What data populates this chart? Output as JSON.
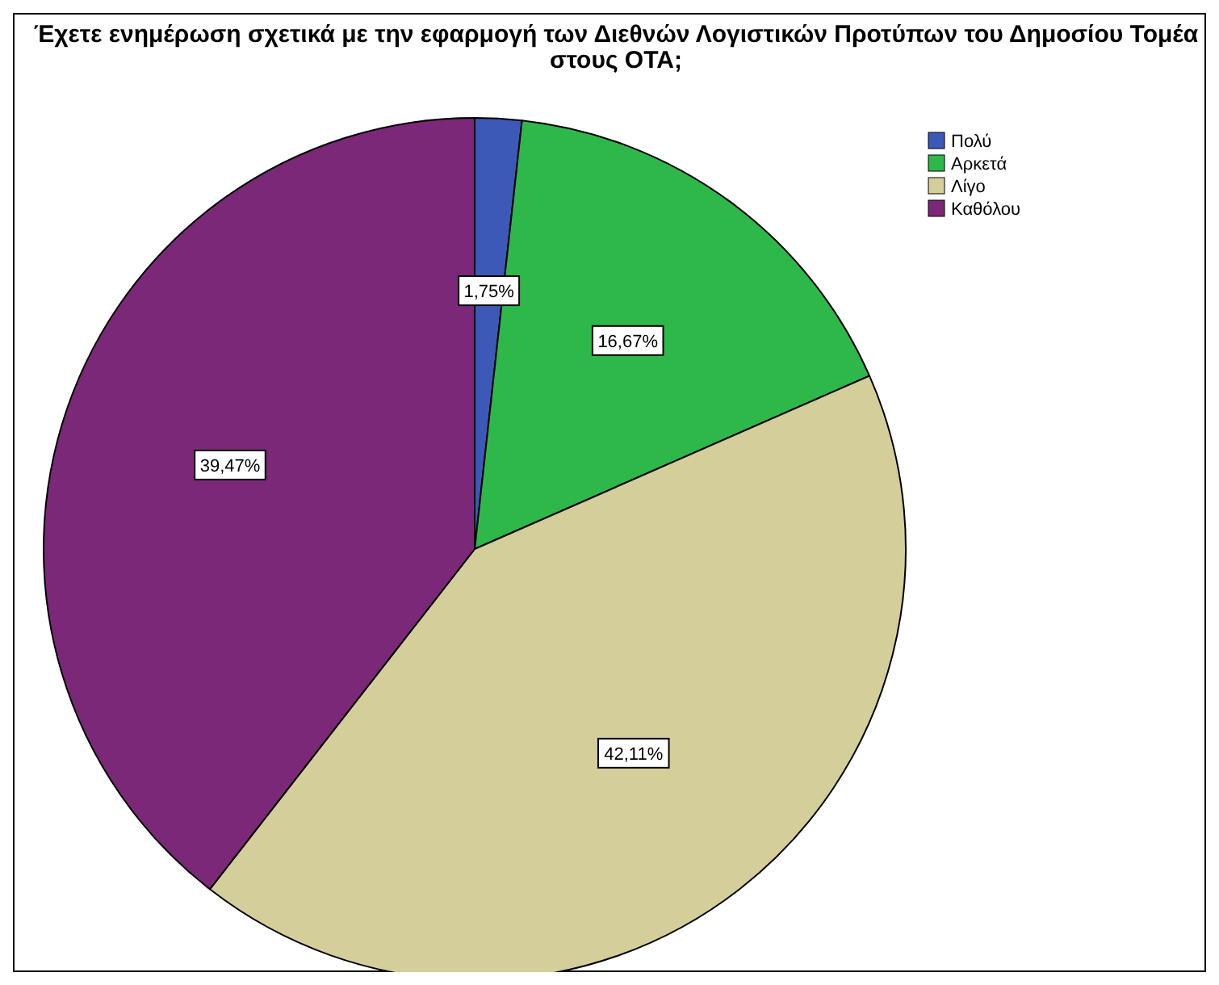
{
  "chart_data": {
    "type": "pie",
    "title": "Έχετε ενημέρωση σχετικά με την εφαρμογή των Διεθνών  Λογιστικών Προτύπων του Δημοσίου Τομέα στους ΟΤΑ;",
    "categories": [
      "Πολύ",
      "Αρκετά",
      "Λίγο",
      "Καθόλου"
    ],
    "values": [
      1.75,
      16.67,
      42.11,
      39.47
    ],
    "colors": [
      "#3d59b8",
      "#2eb84a",
      "#d4cf9a",
      "#7b2878"
    ],
    "value_labels": [
      "1,75%",
      "16,67%",
      "42,11%",
      "39,47%"
    ],
    "legend": "top right"
  }
}
